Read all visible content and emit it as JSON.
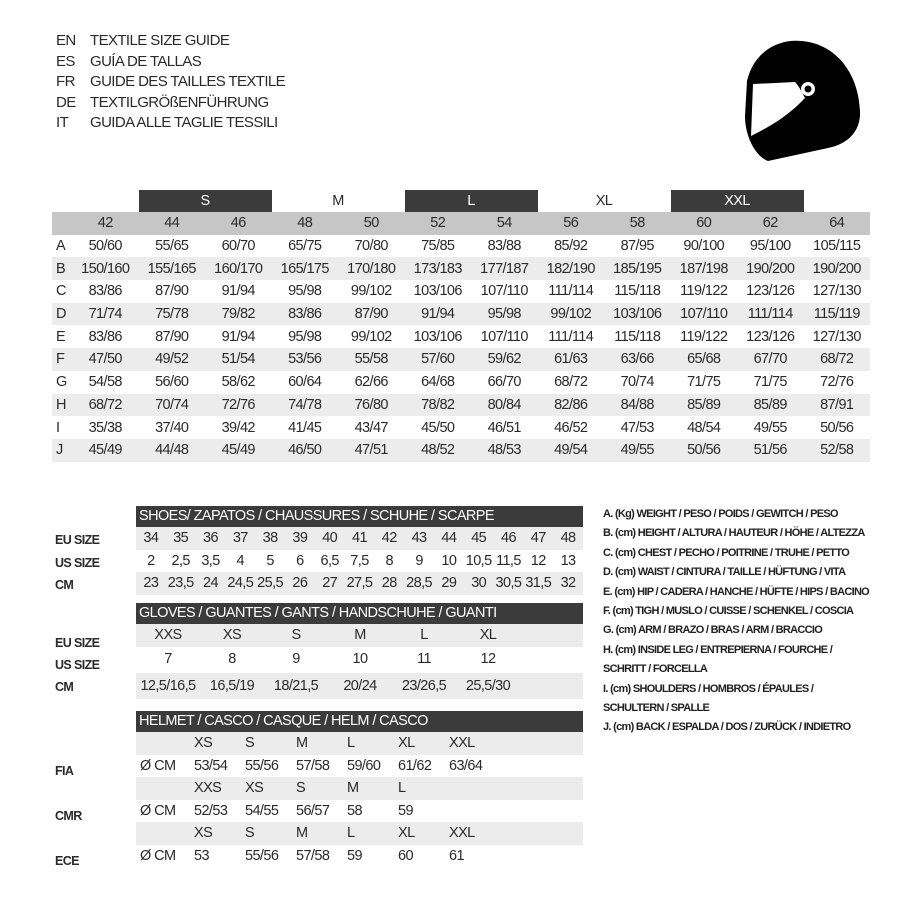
{
  "titles": [
    {
      "code": "EN",
      "text": "TEXTILE SIZE GUIDE"
    },
    {
      "code": "ES",
      "text": "GUÍA DE TALLAS"
    },
    {
      "code": "FR",
      "text": "GUIDE DES TAILLES TEXTILE"
    },
    {
      "code": "DE",
      "text": "TEXTILGRÖßENFÜHRUNG"
    },
    {
      "code": "IT",
      "text": "GUIDA ALLE TAGLIE TESSILI"
    }
  ],
  "icon": "helmet-icon",
  "colors": {
    "header_dark": "#3b3b3b",
    "number_row": "#c6c6c6",
    "alt_row": "#ececec"
  },
  "textile": {
    "letter_sizes": [
      "S",
      "M",
      "L",
      "XL",
      "XXL"
    ],
    "numbers": [
      "42",
      "44",
      "46",
      "48",
      "50",
      "52",
      "54",
      "56",
      "58",
      "60",
      "62",
      "64"
    ],
    "rows": [
      {
        "label": "A",
        "values": [
          "50/60",
          "55/65",
          "60/70",
          "65/75",
          "70/80",
          "75/85",
          "83/88",
          "85/92",
          "87/95",
          "90/100",
          "95/100",
          "105/115"
        ]
      },
      {
        "label": "B",
        "values": [
          "150/160",
          "155/165",
          "160/170",
          "165/175",
          "170/180",
          "173/183",
          "177/187",
          "182/190",
          "185/195",
          "187/198",
          "190/200",
          "190/200"
        ]
      },
      {
        "label": "C",
        "values": [
          "83/86",
          "87/90",
          "91/94",
          "95/98",
          "99/102",
          "103/106",
          "107/110",
          "111/114",
          "115/118",
          "119/122",
          "123/126",
          "127/130"
        ]
      },
      {
        "label": "D",
        "values": [
          "71/74",
          "75/78",
          "79/82",
          "83/86",
          "87/90",
          "91/94",
          "95/98",
          "99/102",
          "103/106",
          "107/110",
          "111/114",
          "115/119"
        ]
      },
      {
        "label": "E",
        "values": [
          "83/86",
          "87/90",
          "91/94",
          "95/98",
          "99/102",
          "103/106",
          "107/110",
          "111/114",
          "115/118",
          "119/122",
          "123/126",
          "127/130"
        ]
      },
      {
        "label": "F",
        "values": [
          "47/50",
          "49/52",
          "51/54",
          "53/56",
          "55/58",
          "57/60",
          "59/62",
          "61/63",
          "63/66",
          "65/68",
          "67/70",
          "68/72"
        ]
      },
      {
        "label": "G",
        "values": [
          "54/58",
          "56/60",
          "58/62",
          "60/64",
          "62/66",
          "64/68",
          "66/70",
          "68/72",
          "70/74",
          "71/75",
          "71/75",
          "72/76"
        ]
      },
      {
        "label": "H",
        "values": [
          "68/72",
          "70/74",
          "72/76",
          "74/78",
          "76/80",
          "78/82",
          "80/84",
          "82/86",
          "84/88",
          "85/89",
          "85/89",
          "87/91"
        ]
      },
      {
        "label": "I",
        "values": [
          "35/38",
          "37/40",
          "39/42",
          "41/45",
          "43/47",
          "45/50",
          "46/51",
          "46/52",
          "47/53",
          "48/54",
          "49/55",
          "50/56"
        ]
      },
      {
        "label": "J",
        "values": [
          "45/49",
          "44/48",
          "45/49",
          "46/50",
          "47/51",
          "48/52",
          "48/53",
          "49/54",
          "49/55",
          "50/56",
          "51/56",
          "52/58"
        ]
      }
    ]
  },
  "shoes": {
    "title": "SHOES/ ZAPATOS / CHAUSSURES / SCHUHE / SCARPE",
    "labels": [
      "EU SIZE",
      "US SIZE",
      "CM"
    ],
    "eu": [
      "34",
      "35",
      "36",
      "37",
      "38",
      "39",
      "40",
      "41",
      "42",
      "43",
      "44",
      "45",
      "46",
      "47",
      "48"
    ],
    "us": [
      "2",
      "2,5",
      "3,5",
      "4",
      "5",
      "6",
      "6,5",
      "7,5",
      "8",
      "9",
      "10",
      "10,5",
      "11,5",
      "12",
      "13"
    ],
    "cm": [
      "23",
      "23,5",
      "24",
      "24,5",
      "25,5",
      "26",
      "27",
      "27,5",
      "28",
      "28,5",
      "29",
      "30",
      "30,5",
      "31,5",
      "32"
    ]
  },
  "gloves": {
    "title": "GLOVES / GUANTES / GANTS / HANDSCHUHE / GUANTI",
    "labels": [
      "EU SIZE",
      "US SIZE",
      "CM"
    ],
    "eu": [
      "XXS",
      "XS",
      "S",
      "M",
      "L",
      "XL"
    ],
    "us": [
      "7",
      "8",
      "9",
      "10",
      "11",
      "12"
    ],
    "cm": [
      "12,5/16,5",
      "16,5/19",
      "18/21,5",
      "20/24",
      "23/26,5",
      "25,5/30"
    ]
  },
  "helmet": {
    "title": "HELMET / CASCO / CASQUE / HELM / CASCO",
    "unit": "Ø CM",
    "standards": [
      {
        "name": "FIA",
        "sizes": [
          "XS",
          "S",
          "M",
          "L",
          "XL",
          "XXL"
        ],
        "values": [
          "53/54",
          "55/56",
          "57/58",
          "59/60",
          "61/62",
          "63/64"
        ]
      },
      {
        "name": "CMR",
        "sizes": [
          "XXS",
          "XS",
          "S",
          "M",
          "L"
        ],
        "values": [
          "52/53",
          "54/55",
          "56/57",
          "58",
          "59"
        ]
      },
      {
        "name": "ECE",
        "sizes": [
          "XS",
          "S",
          "M",
          "L",
          "XL",
          "XXL"
        ],
        "values": [
          "53",
          "55/56",
          "57/58",
          "59",
          "60",
          "61"
        ]
      }
    ]
  },
  "legend": [
    "A. (Kg) WEIGHT / PESO / POIDS / GEWITCH / PESO",
    "B. (cm) HEIGHT / ALTURA / HAUTEUR / HÖHE / ALTEZZA",
    "C. (cm) CHEST / PECHO / POITRINE / TRUHE / PETTO",
    "D. (cm) WAIST / CINTURA / TAILLE / HÜFTUNG / VITA",
    "E. (cm) HIP / CADERA / HANCHE / HÜFTE / HIPS /  BACINO",
    "F.  (cm) TIGH / MUSLO / CUISSE / SCHENKEL / COSCIA",
    "G. (cm) ARM  / BRAZO / BRAS / ARM / BRACCIO",
    "H. (cm) INSIDE LEG / ENTREPIERNA / FOURCHE /",
    "SCHRITT / FORCELLA",
    "I.  (cm) SHOULDERS / HOMBROS / ÉPAULES /",
    "SCHULTERN / SPALLE",
    "J. (cm) BACK / ESPALDA / DOS / ZURÜCK / INDIETRO"
  ]
}
